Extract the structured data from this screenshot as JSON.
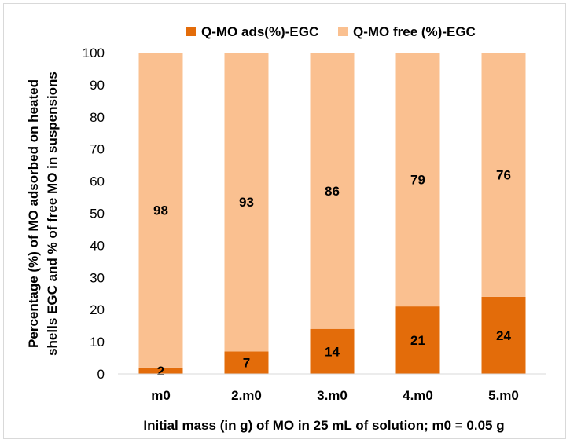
{
  "chart_data": {
    "type": "bar",
    "stacked": true,
    "categories": [
      "m0",
      "2.m0",
      "3.m0",
      "4.m0",
      "5.m0"
    ],
    "series": [
      {
        "name": "Q-MO ads(%)-EGC",
        "color": "#e36c0a",
        "values": [
          2,
          7,
          14,
          21,
          24
        ]
      },
      {
        "name": "Q-MO free (%)-EGC",
        "color": "#fac090",
        "values": [
          98,
          93,
          86,
          79,
          76
        ]
      }
    ],
    "ylabel_line1": "Percentage (%) of MO adsorbed on heated",
    "ylabel_line2": "shells EGC and % of free MO in suspensions",
    "xlabel": "Initial mass (in g) of MO in 25 mL of solution; m0 = 0.05 g",
    "ylim": [
      0,
      100
    ],
    "yticks": [
      0,
      10,
      20,
      30,
      40,
      50,
      60,
      70,
      80,
      90,
      100
    ],
    "grid": false,
    "legend_position": "top"
  }
}
